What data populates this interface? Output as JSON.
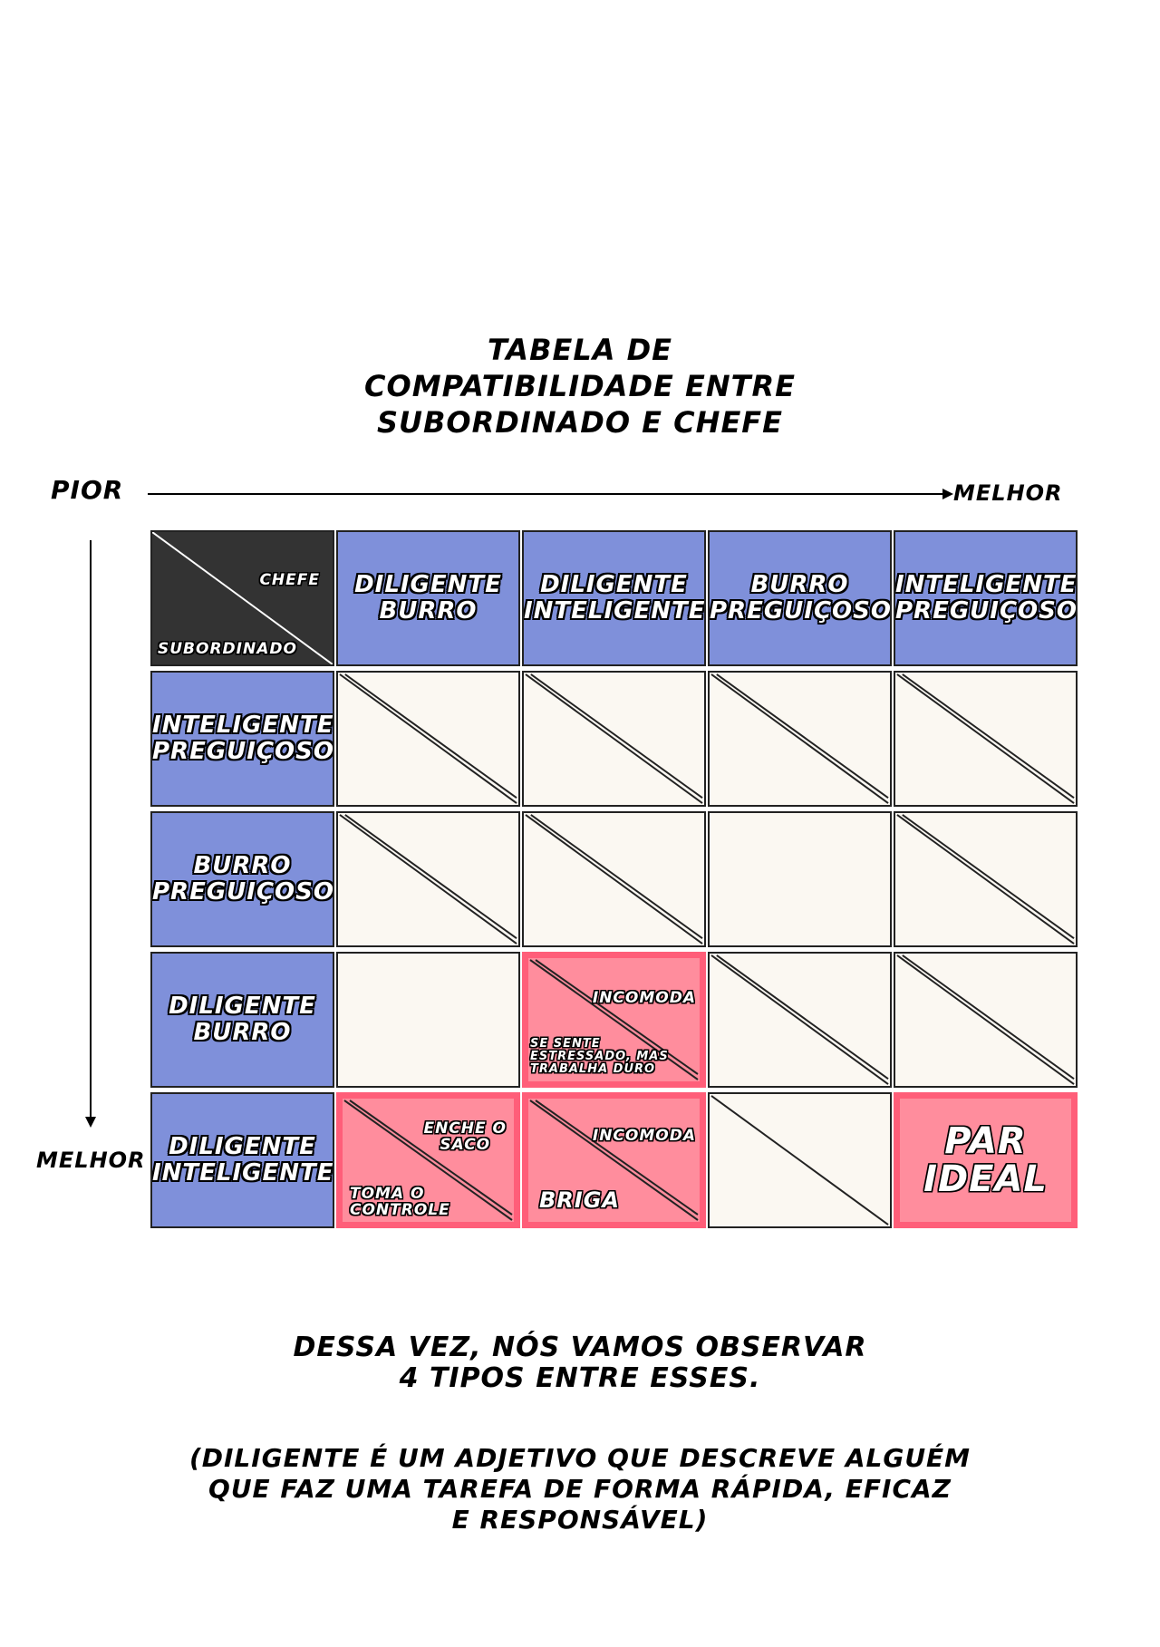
{
  "title": "TABELA DE\nCOMPATIBILIDADE ENTRE\nSUBORDINADO E CHEFE",
  "axis": {
    "pior": "PIOR",
    "melhor_x": "MELHOR",
    "melhor_y": "MELHOR"
  },
  "corner": {
    "chefe": "CHEFE",
    "subordinado": "SUBORDINADO"
  },
  "columns": [
    "DILIGENTE\nBURRO",
    "DILIGENTE\nINTELIGENTE",
    "BURRO\nPREGUIÇOSO",
    "INTELIGENTE\nPREGUIÇOSO"
  ],
  "rows": [
    "INTELIGENTE\nPREGUIÇOSO",
    "BURRO\nPREGUIÇOSO",
    "DILIGENTE\nBURRO",
    "DILIGENTE\nINTELIGENTE"
  ],
  "cells": {
    "r3c2": {
      "top": "INCOMODA",
      "bottom": "SE SENTE\nESTRESSADO, MAS\nTRABALHA DURO"
    },
    "r4c1": {
      "top": "ENCHE O\nSACO",
      "bottom": "TOMA O\nCONTROLE"
    },
    "r4c2": {
      "top": "INCOMODA",
      "bottom": "BRIGA"
    },
    "r4c4": {
      "center": "PAR\nIDEAL"
    }
  },
  "footer": {
    "line1": "DESSA VEZ, NÓS VAMOS OBSERVAR\n4 TIPOS ENTRE ESSES.",
    "line2": "(DILIGENTE É UM ADJETIVO QUE DESCREVE ALGUÉM\nQUE FAZ UMA TAREFA DE FORMA RÁPIDA, EFICAZ\nE RESPONSÁVEL)"
  },
  "colors": {
    "header": "#7f90da",
    "corner": "#333333",
    "empty": "#fbf8f2",
    "pink_fill": "#ff8d9d",
    "pink_border": "#ff5e79"
  }
}
